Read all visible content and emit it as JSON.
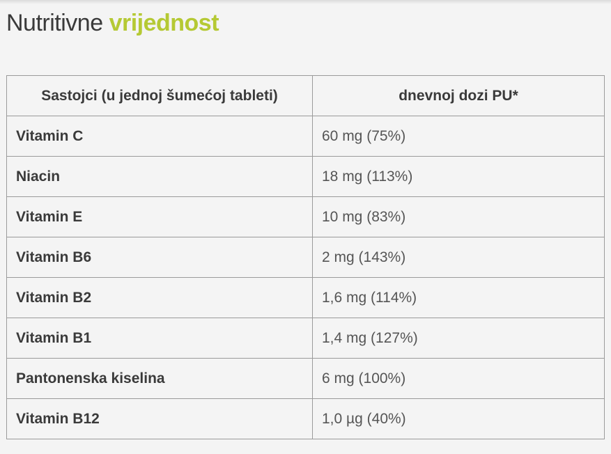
{
  "heading": {
    "part1": "Nutritivne",
    "part2": "vrijednost",
    "accent_color": "#b5c934"
  },
  "table": {
    "headers": [
      "Sastojci (u jednoj šumećoj tableti)",
      "dnevnoj dozi PU*"
    ],
    "rows": [
      {
        "name": "Vitamin C",
        "value": "60 mg (75%)"
      },
      {
        "name": "Niacin",
        "value": "18 mg (113%)"
      },
      {
        "name": "Vitamin E",
        "value": "10 mg (83%)"
      },
      {
        "name": "Vitamin B6",
        "value": "2 mg (143%)"
      },
      {
        "name": "Vitamin B2",
        "value": "1,6 mg (114%)"
      },
      {
        "name": "Vitamin B1",
        "value": "1,4 mg (127%)"
      },
      {
        "name": "Pantonenska kiselina",
        "value": "6 mg (100%)"
      },
      {
        "name": "Vitamin B12",
        "value": "1,0 µg (40%)"
      }
    ]
  }
}
